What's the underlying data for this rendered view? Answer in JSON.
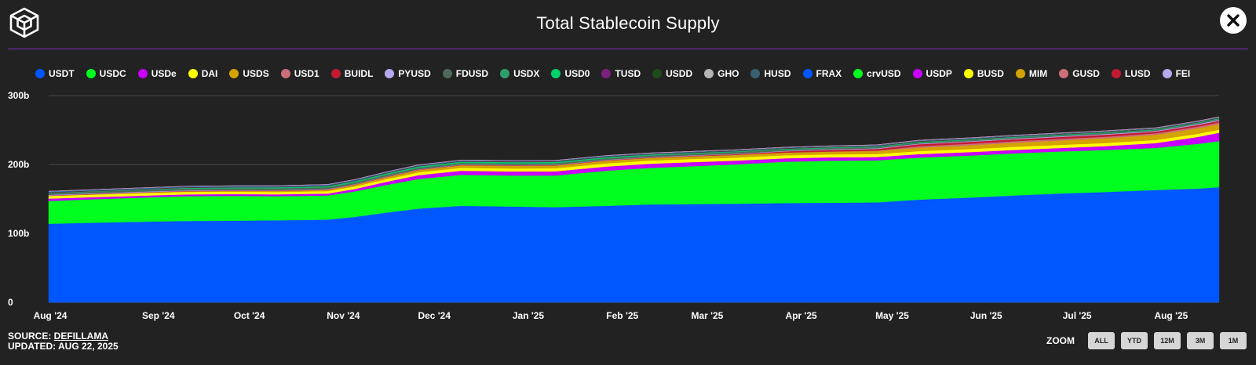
{
  "header": {
    "title": "Total Stablecoin Supply"
  },
  "icons": {
    "logo": "cube-logo-icon",
    "close": "close-icon"
  },
  "footer": {
    "source_prefix": "SOURCE: ",
    "source_link": "DEFILLAMA",
    "updated": "UPDATED: AUG 22, 2025"
  },
  "zoom": {
    "label": "ZOOM",
    "buttons": [
      "ALL",
      "YTD",
      "12M",
      "3M",
      "1M"
    ]
  },
  "chart_data": {
    "type": "area",
    "stacked": true,
    "title": "Total Stablecoin Supply",
    "ylim": [
      0,
      300
    ],
    "yticks": [
      0,
      100,
      200,
      300
    ],
    "ytick_labels": [
      "0",
      "100b",
      "200b",
      "300b"
    ],
    "xtick_labels": [
      "Aug '24",
      "Sep '24",
      "Oct '24",
      "Nov '24",
      "Dec '24",
      "Jan '25",
      "Feb '25",
      "Mar '25",
      "Apr '25",
      "May '25",
      "Jun '25",
      "Jul '25",
      "Aug '25"
    ],
    "legend_position": "top",
    "grid": true,
    "x": [
      "2024-08-01",
      "2024-08-15",
      "2024-09-01",
      "2024-09-15",
      "2024-10-01",
      "2024-10-15",
      "2024-11-01",
      "2024-11-10",
      "2024-11-20",
      "2024-12-01",
      "2024-12-15",
      "2025-01-01",
      "2025-01-15",
      "2025-02-01",
      "2025-02-15",
      "2025-03-01",
      "2025-03-15",
      "2025-04-01",
      "2025-04-15",
      "2025-05-01",
      "2025-05-15",
      "2025-06-01",
      "2025-06-15",
      "2025-07-01",
      "2025-07-15",
      "2025-08-01",
      "2025-08-15",
      "2025-08-22"
    ],
    "series": [
      {
        "name": "USDT",
        "color": "#0057ff",
        "values": [
          114,
          115.5,
          117,
          118,
          118.5,
          119,
          120,
          124,
          130,
          136,
          140,
          139,
          138,
          140,
          142,
          142.5,
          143,
          144,
          144.5,
          145,
          149,
          152,
          155,
          158,
          160,
          163,
          165,
          167
        ]
      },
      {
        "name": "USDC",
        "color": "#00ff1e",
        "values": [
          33,
          34,
          35,
          36,
          36,
          35,
          35,
          37,
          40,
          43,
          45,
          45,
          46,
          51,
          53,
          55,
          57,
          60,
          61,
          61,
          61,
          61,
          61,
          61,
          61,
          61,
          65,
          67
        ]
      },
      {
        "name": "USDe",
        "color": "#c800ff",
        "values": [
          3.5,
          3,
          2.8,
          2.6,
          2.6,
          2.7,
          2.8,
          3.5,
          4.5,
          5.5,
          5.9,
          5.9,
          6,
          6,
          6,
          5.9,
          5.5,
          5,
          4.8,
          4.8,
          5,
          5,
          5,
          5,
          5.5,
          7,
          10,
          12
        ]
      },
      {
        "name": "DAI",
        "color": "#ffff00",
        "values": [
          3.8,
          3.7,
          3.6,
          3.5,
          3.4,
          3.4,
          3.5,
          3.6,
          3.8,
          4,
          4.2,
          4.3,
          4.5,
          4.5,
          4.5,
          4.5,
          4.4,
          4.3,
          4.3,
          4.3,
          4.4,
          4.4,
          4.5,
          4.5,
          4.5,
          4.5,
          4.5,
          4.5
        ]
      },
      {
        "name": "USDS",
        "color": "#d4a300",
        "values": [
          0.2,
          0.5,
          0.8,
          1,
          1.3,
          1.6,
          2,
          2.5,
          3,
          3.5,
          3.8,
          4,
          4,
          4,
          4,
          4,
          4,
          4,
          4,
          4.5,
          5,
          5.5,
          6,
          6.5,
          7,
          7.5,
          8,
          8
        ]
      },
      {
        "name": "USD1",
        "color": "#cc6f7b",
        "values": [
          0,
          0,
          0,
          0,
          0,
          0,
          0,
          0,
          0,
          0,
          0,
          0,
          0,
          0,
          0,
          0,
          0,
          0,
          0.1,
          0.5,
          2.2,
          2.2,
          2.2,
          2.2,
          2.2,
          2.2,
          2.5,
          2.6
        ]
      },
      {
        "name": "BUIDL",
        "color": "#c41a32",
        "values": [
          0.5,
          0.5,
          0.5,
          0.5,
          0.5,
          0.5,
          0.5,
          0.5,
          0.6,
          0.6,
          0.6,
          0.6,
          0.6,
          0.7,
          0.7,
          0.8,
          1,
          1.8,
          2.5,
          2.5,
          2.8,
          2.9,
          2.8,
          2.9,
          2.9,
          2.5,
          2.4,
          2.3
        ]
      },
      {
        "name": "PYUSD",
        "color": "#b8a9f0",
        "values": [
          0.9,
          0.9,
          0.9,
          0.8,
          0.7,
          0.6,
          0.5,
          0.5,
          0.5,
          0.5,
          0.5,
          0.5,
          0.5,
          0.6,
          0.6,
          0.6,
          0.6,
          0.7,
          0.8,
          0.9,
          0.9,
          0.9,
          1,
          1,
          1,
          1,
          1.2,
          1.2
        ]
      },
      {
        "name": "FDUSD",
        "color": "#4e6b5a",
        "values": [
          2.5,
          2.5,
          2.6,
          2.6,
          2.5,
          2.5,
          2.5,
          2.2,
          2,
          1.9,
          1.8,
          1.8,
          1.8,
          1.9,
          2,
          2,
          2.2,
          1.8,
          1.5,
          1.4,
          1.3,
          1.3,
          1.2,
          1.2,
          1.2,
          1.1,
          1.1,
          1.1
        ]
      },
      {
        "name": "USDX",
        "color": "#2e9f6a",
        "values": [
          0.02,
          0.05,
          0.1,
          0.2,
          0.3,
          0.4,
          0.5,
          0.6,
          0.7,
          0.7,
          0.7,
          0.7,
          0.7,
          0.7,
          0.7,
          0.7,
          0.7,
          0.7,
          0.7,
          0.7,
          0.7,
          0.7,
          0.7,
          0.7,
          0.7,
          0.7,
          0.7,
          0.7
        ]
      },
      {
        "name": "USD0",
        "color": "#00d26a",
        "values": [
          0.3,
          0.4,
          0.5,
          0.8,
          1,
          1.2,
          1.3,
          1.4,
          1.5,
          1.5,
          1.6,
          1.6,
          1.5,
          1.3,
          1.0,
          0.8,
          0.7,
          0.6,
          0.6,
          0.6,
          0.6,
          0.6,
          0.6,
          0.6,
          0.6,
          0.6,
          0.6,
          0.6
        ]
      },
      {
        "name": "TUSD",
        "color": "#7b1f80",
        "values": [
          0.5,
          0.5,
          0.5,
          0.5,
          0.5,
          0.5,
          0.5,
          0.5,
          0.5,
          0.5,
          0.5,
          0.5,
          0.5,
          0.5,
          0.5,
          0.5,
          0.5,
          0.5,
          0.5,
          0.5,
          0.5,
          0.5,
          0.5,
          0.5,
          0.5,
          0.5,
          0.5,
          0.5
        ]
      },
      {
        "name": "USDD",
        "color": "#1f4a1c",
        "values": [
          0.7,
          0.7,
          0.7,
          0.7,
          0.7,
          0.7,
          0.7,
          0.7,
          0.7,
          0.7,
          0.7,
          0.7,
          0.7,
          0.7,
          0.7,
          0.7,
          0.7,
          0.7,
          0.7,
          0.7,
          0.7,
          0.7,
          0.7,
          0.7,
          0.7,
          0.6,
          0.6,
          0.6
        ]
      },
      {
        "name": "GHO",
        "color": "#b5b5b5",
        "values": [
          0.2,
          0.2,
          0.2,
          0.2,
          0.2,
          0.2,
          0.2,
          0.2,
          0.2,
          0.2,
          0.2,
          0.2,
          0.2,
          0.2,
          0.2,
          0.2,
          0.2,
          0.2,
          0.2,
          0.3,
          0.3,
          0.3,
          0.3,
          0.3,
          0.3,
          0.3,
          0.3,
          0.3
        ]
      },
      {
        "name": "HUSD",
        "color": "#3a6070",
        "values": [
          0.03,
          0.03,
          0.03,
          0.03,
          0.03,
          0.03,
          0.03,
          0.03,
          0.03,
          0.03,
          0.03,
          0.03,
          0.03,
          0.03,
          0.03,
          0.03,
          0.03,
          0.03,
          0.03,
          0.03,
          0.03,
          0.03,
          0.03,
          0.03,
          0.03,
          0.03,
          0.03,
          0.03
        ]
      },
      {
        "name": "FRAX",
        "color": "#0057ff",
        "values": [
          0.6,
          0.6,
          0.6,
          0.6,
          0.6,
          0.6,
          0.6,
          0.6,
          0.5,
          0.5,
          0.5,
          0.5,
          0.5,
          0.5,
          0.4,
          0.4,
          0.4,
          0.4,
          0.4,
          0.4,
          0.4,
          0.4,
          0.4,
          0.3,
          0.3,
          0.3,
          0.3,
          0.3
        ]
      },
      {
        "name": "crvUSD",
        "color": "#00ff1e",
        "values": [
          0.1,
          0.1,
          0.1,
          0.1,
          0.1,
          0.1,
          0.1,
          0.1,
          0.1,
          0.1,
          0.1,
          0.1,
          0.1,
          0.1,
          0.1,
          0.1,
          0.1,
          0.1,
          0.1,
          0.1,
          0.1,
          0.1,
          0.1,
          0.1,
          0.1,
          0.1,
          0.1,
          0.1
        ]
      },
      {
        "name": "USDP",
        "color": "#c800ff",
        "values": [
          0.1,
          0.1,
          0.1,
          0.1,
          0.1,
          0.1,
          0.1,
          0.1,
          0.1,
          0.1,
          0.1,
          0.1,
          0.1,
          0.1,
          0.1,
          0.1,
          0.1,
          0.1,
          0.1,
          0.1,
          0.1,
          0.1,
          0.1,
          0.1,
          0.1,
          0.1,
          0.1,
          0.1
        ]
      },
      {
        "name": "BUSD",
        "color": "#ffff00",
        "values": [
          0.06,
          0.06,
          0.06,
          0.06,
          0.06,
          0.06,
          0.06,
          0.06,
          0.06,
          0.06,
          0.06,
          0.06,
          0.06,
          0.06,
          0.06,
          0.06,
          0.06,
          0.06,
          0.06,
          0.06,
          0.06,
          0.06,
          0.06,
          0.06,
          0.06,
          0.06,
          0.06,
          0.06
        ]
      },
      {
        "name": "MIM",
        "color": "#d4a300",
        "values": [
          0.05,
          0.05,
          0.05,
          0.05,
          0.05,
          0.05,
          0.05,
          0.05,
          0.05,
          0.05,
          0.05,
          0.05,
          0.05,
          0.05,
          0.05,
          0.05,
          0.05,
          0.05,
          0.05,
          0.05,
          0.05,
          0.05,
          0.05,
          0.05,
          0.05,
          0.05,
          0.05,
          0.05
        ]
      },
      {
        "name": "GUSD",
        "color": "#cc6f7b",
        "values": [
          0.05,
          0.05,
          0.05,
          0.05,
          0.05,
          0.05,
          0.05,
          0.05,
          0.05,
          0.05,
          0.05,
          0.05,
          0.05,
          0.05,
          0.05,
          0.05,
          0.05,
          0.05,
          0.05,
          0.05,
          0.05,
          0.05,
          0.05,
          0.05,
          0.05,
          0.05,
          0.05,
          0.05
        ]
      },
      {
        "name": "LUSD",
        "color": "#c41a32",
        "values": [
          0.05,
          0.05,
          0.05,
          0.05,
          0.05,
          0.05,
          0.05,
          0.05,
          0.05,
          0.05,
          0.05,
          0.05,
          0.05,
          0.05,
          0.05,
          0.05,
          0.05,
          0.05,
          0.05,
          0.05,
          0.05,
          0.05,
          0.05,
          0.05,
          0.05,
          0.05,
          0.05,
          0.05
        ]
      },
      {
        "name": "FEI",
        "color": "#b8a9f0",
        "values": [
          0.01,
          0.01,
          0.01,
          0.01,
          0.01,
          0.01,
          0.01,
          0.01,
          0.01,
          0.01,
          0.01,
          0.01,
          0.01,
          0.01,
          0.01,
          0.01,
          0.01,
          0.01,
          0.01,
          0.01,
          0.01,
          0.01,
          0.01,
          0.01,
          0.01,
          0.01,
          0.01,
          0.01
        ]
      }
    ]
  }
}
